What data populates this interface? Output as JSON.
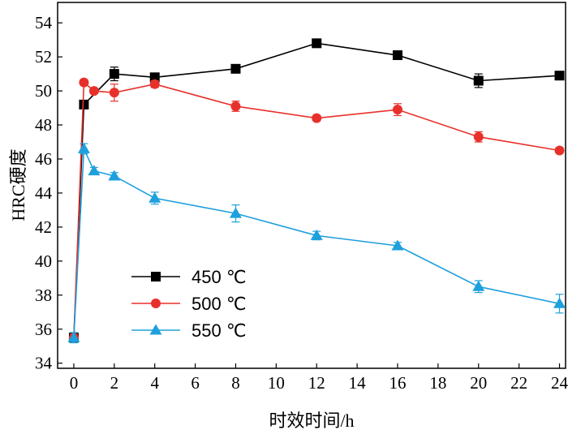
{
  "chart_data": {
    "type": "line",
    "xlabel": "时效时间/h",
    "ylabel": "HRC硬度",
    "xlim": [
      -0.8,
      24.3
    ],
    "ylim": [
      33.7,
      55.2
    ],
    "x_ticks": [
      0,
      2,
      4,
      6,
      8,
      10,
      12,
      14,
      16,
      18,
      20,
      22,
      24
    ],
    "y_ticks": [
      34,
      36,
      38,
      40,
      42,
      44,
      46,
      48,
      50,
      52,
      54
    ],
    "grid": false,
    "legend_position": "lower-left",
    "series": [
      {
        "name": "450 ℃",
        "color": "#000000",
        "marker": "square",
        "x": [
          0,
          0.5,
          2,
          4,
          8,
          12,
          16,
          20,
          24
        ],
        "y": [
          35.5,
          49.2,
          51.0,
          50.8,
          51.3,
          52.8,
          52.1,
          50.6,
          50.9
        ],
        "err": [
          0.2,
          0.2,
          0.4,
          0.2,
          0.2,
          0.15,
          0.15,
          0.4,
          0.15
        ]
      },
      {
        "name": "500 ℃",
        "color": "#e8302a",
        "marker": "circle",
        "x": [
          0,
          0.5,
          1,
          2,
          4,
          8,
          12,
          16,
          20,
          24
        ],
        "y": [
          35.5,
          50.5,
          50.0,
          49.9,
          50.4,
          49.1,
          48.4,
          48.9,
          47.3,
          46.5
        ],
        "err": [
          0.2,
          0.15,
          0.15,
          0.5,
          0.2,
          0.3,
          0.15,
          0.35,
          0.3,
          0.15
        ]
      },
      {
        "name": "550 ℃",
        "color": "#1ea0dc",
        "marker": "triangle",
        "x": [
          0,
          0.5,
          1,
          2,
          4,
          8,
          12,
          16,
          20,
          24
        ],
        "y": [
          35.5,
          46.6,
          45.3,
          45.0,
          43.7,
          42.8,
          41.5,
          40.9,
          38.5,
          37.5
        ],
        "err": [
          0.3,
          0.3,
          0.2,
          0.2,
          0.35,
          0.5,
          0.25,
          0.2,
          0.35,
          0.55
        ]
      }
    ]
  }
}
